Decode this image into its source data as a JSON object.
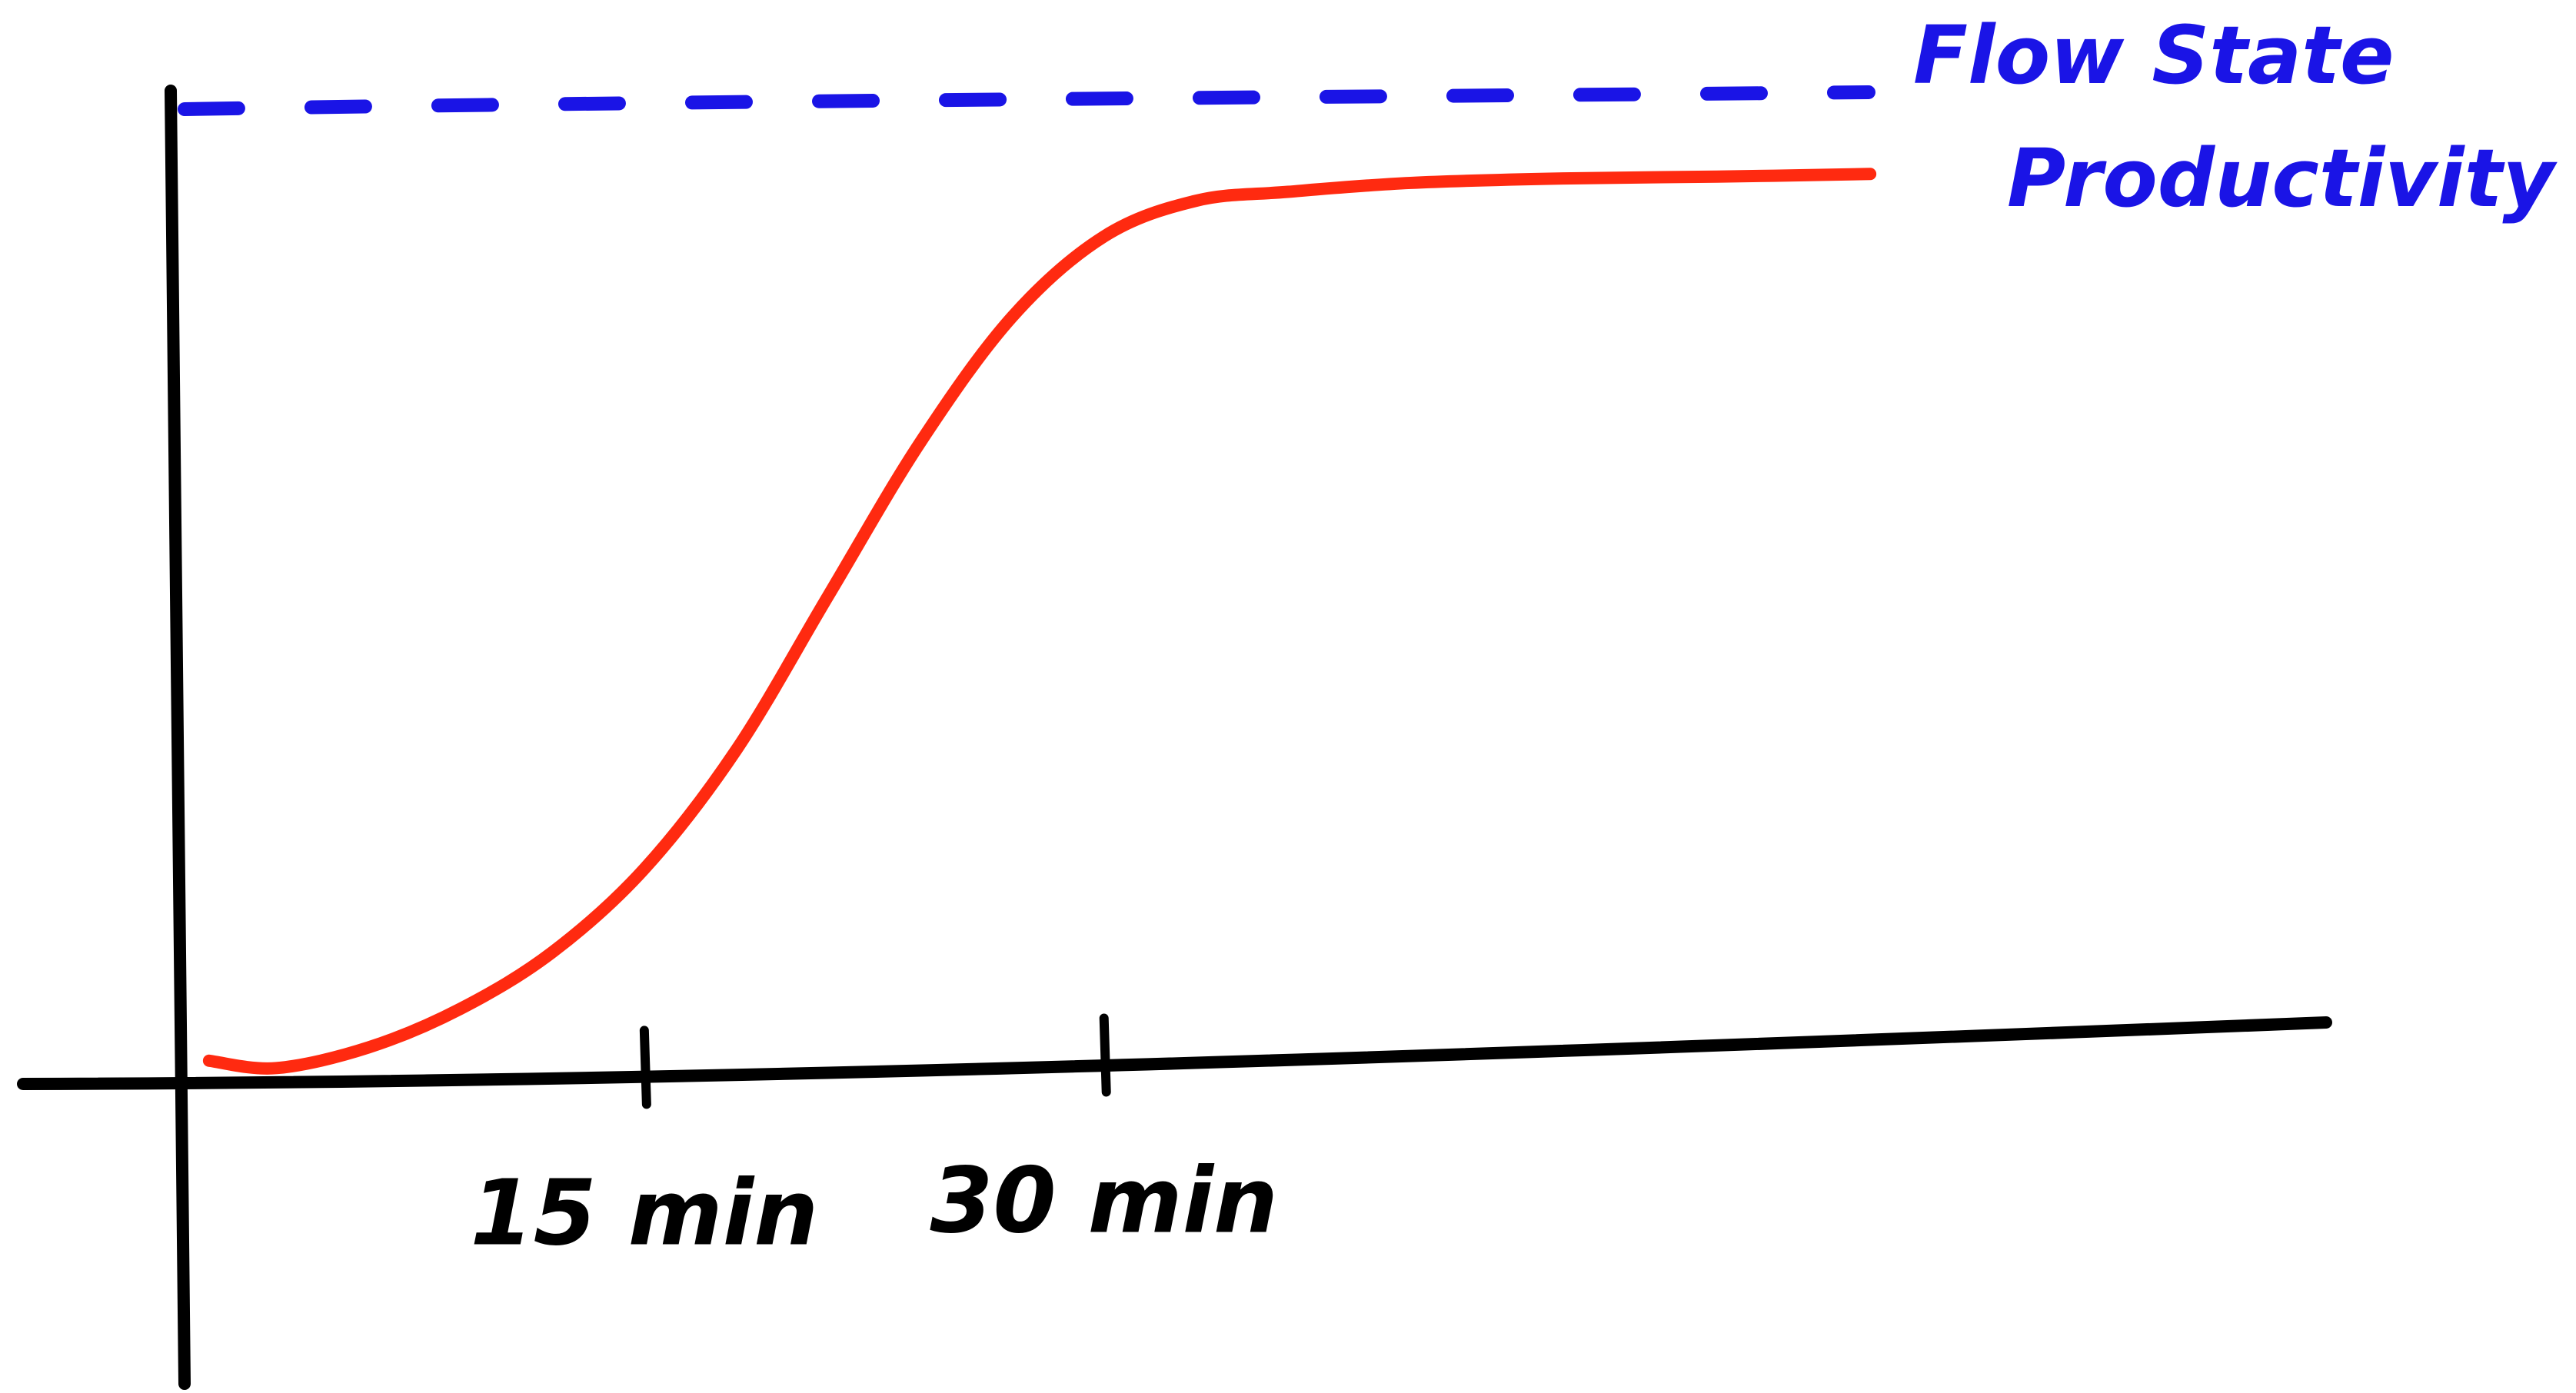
{
  "chart_data": {
    "type": "line",
    "title": "",
    "xlabel": "",
    "ylabel": "",
    "x_ticks": [
      {
        "value": 15,
        "label": "15 min"
      },
      {
        "value": 30,
        "label": "30 min"
      }
    ],
    "xlim": [
      0,
      70
    ],
    "ylim": [
      0,
      100
    ],
    "series": [
      {
        "color": "#ff2a10",
        "style": "solid",
        "x": [
          0.8,
          3,
          6,
          9,
          12,
          15,
          18,
          21,
          24,
          27,
          30,
          33,
          36,
          40,
          45,
          50,
          55
        ],
        "y": [
          2,
          1,
          3,
          7,
          13,
          22,
          35,
          52,
          69,
          83,
          92,
          96,
          97,
          98,
          98.5,
          98.7,
          99
        ]
      }
    ],
    "reference_line": {
      "label_line1": "Flow State",
      "label_line2": "Productivity",
      "y": 104,
      "color": "#1a14e6",
      "style": "dashed"
    },
    "colors": {
      "axis": "#000000",
      "curve": "#ff2a10",
      "reference": "#1a14e6",
      "background": "#ffffff"
    },
    "grid": false,
    "legend": "none"
  }
}
